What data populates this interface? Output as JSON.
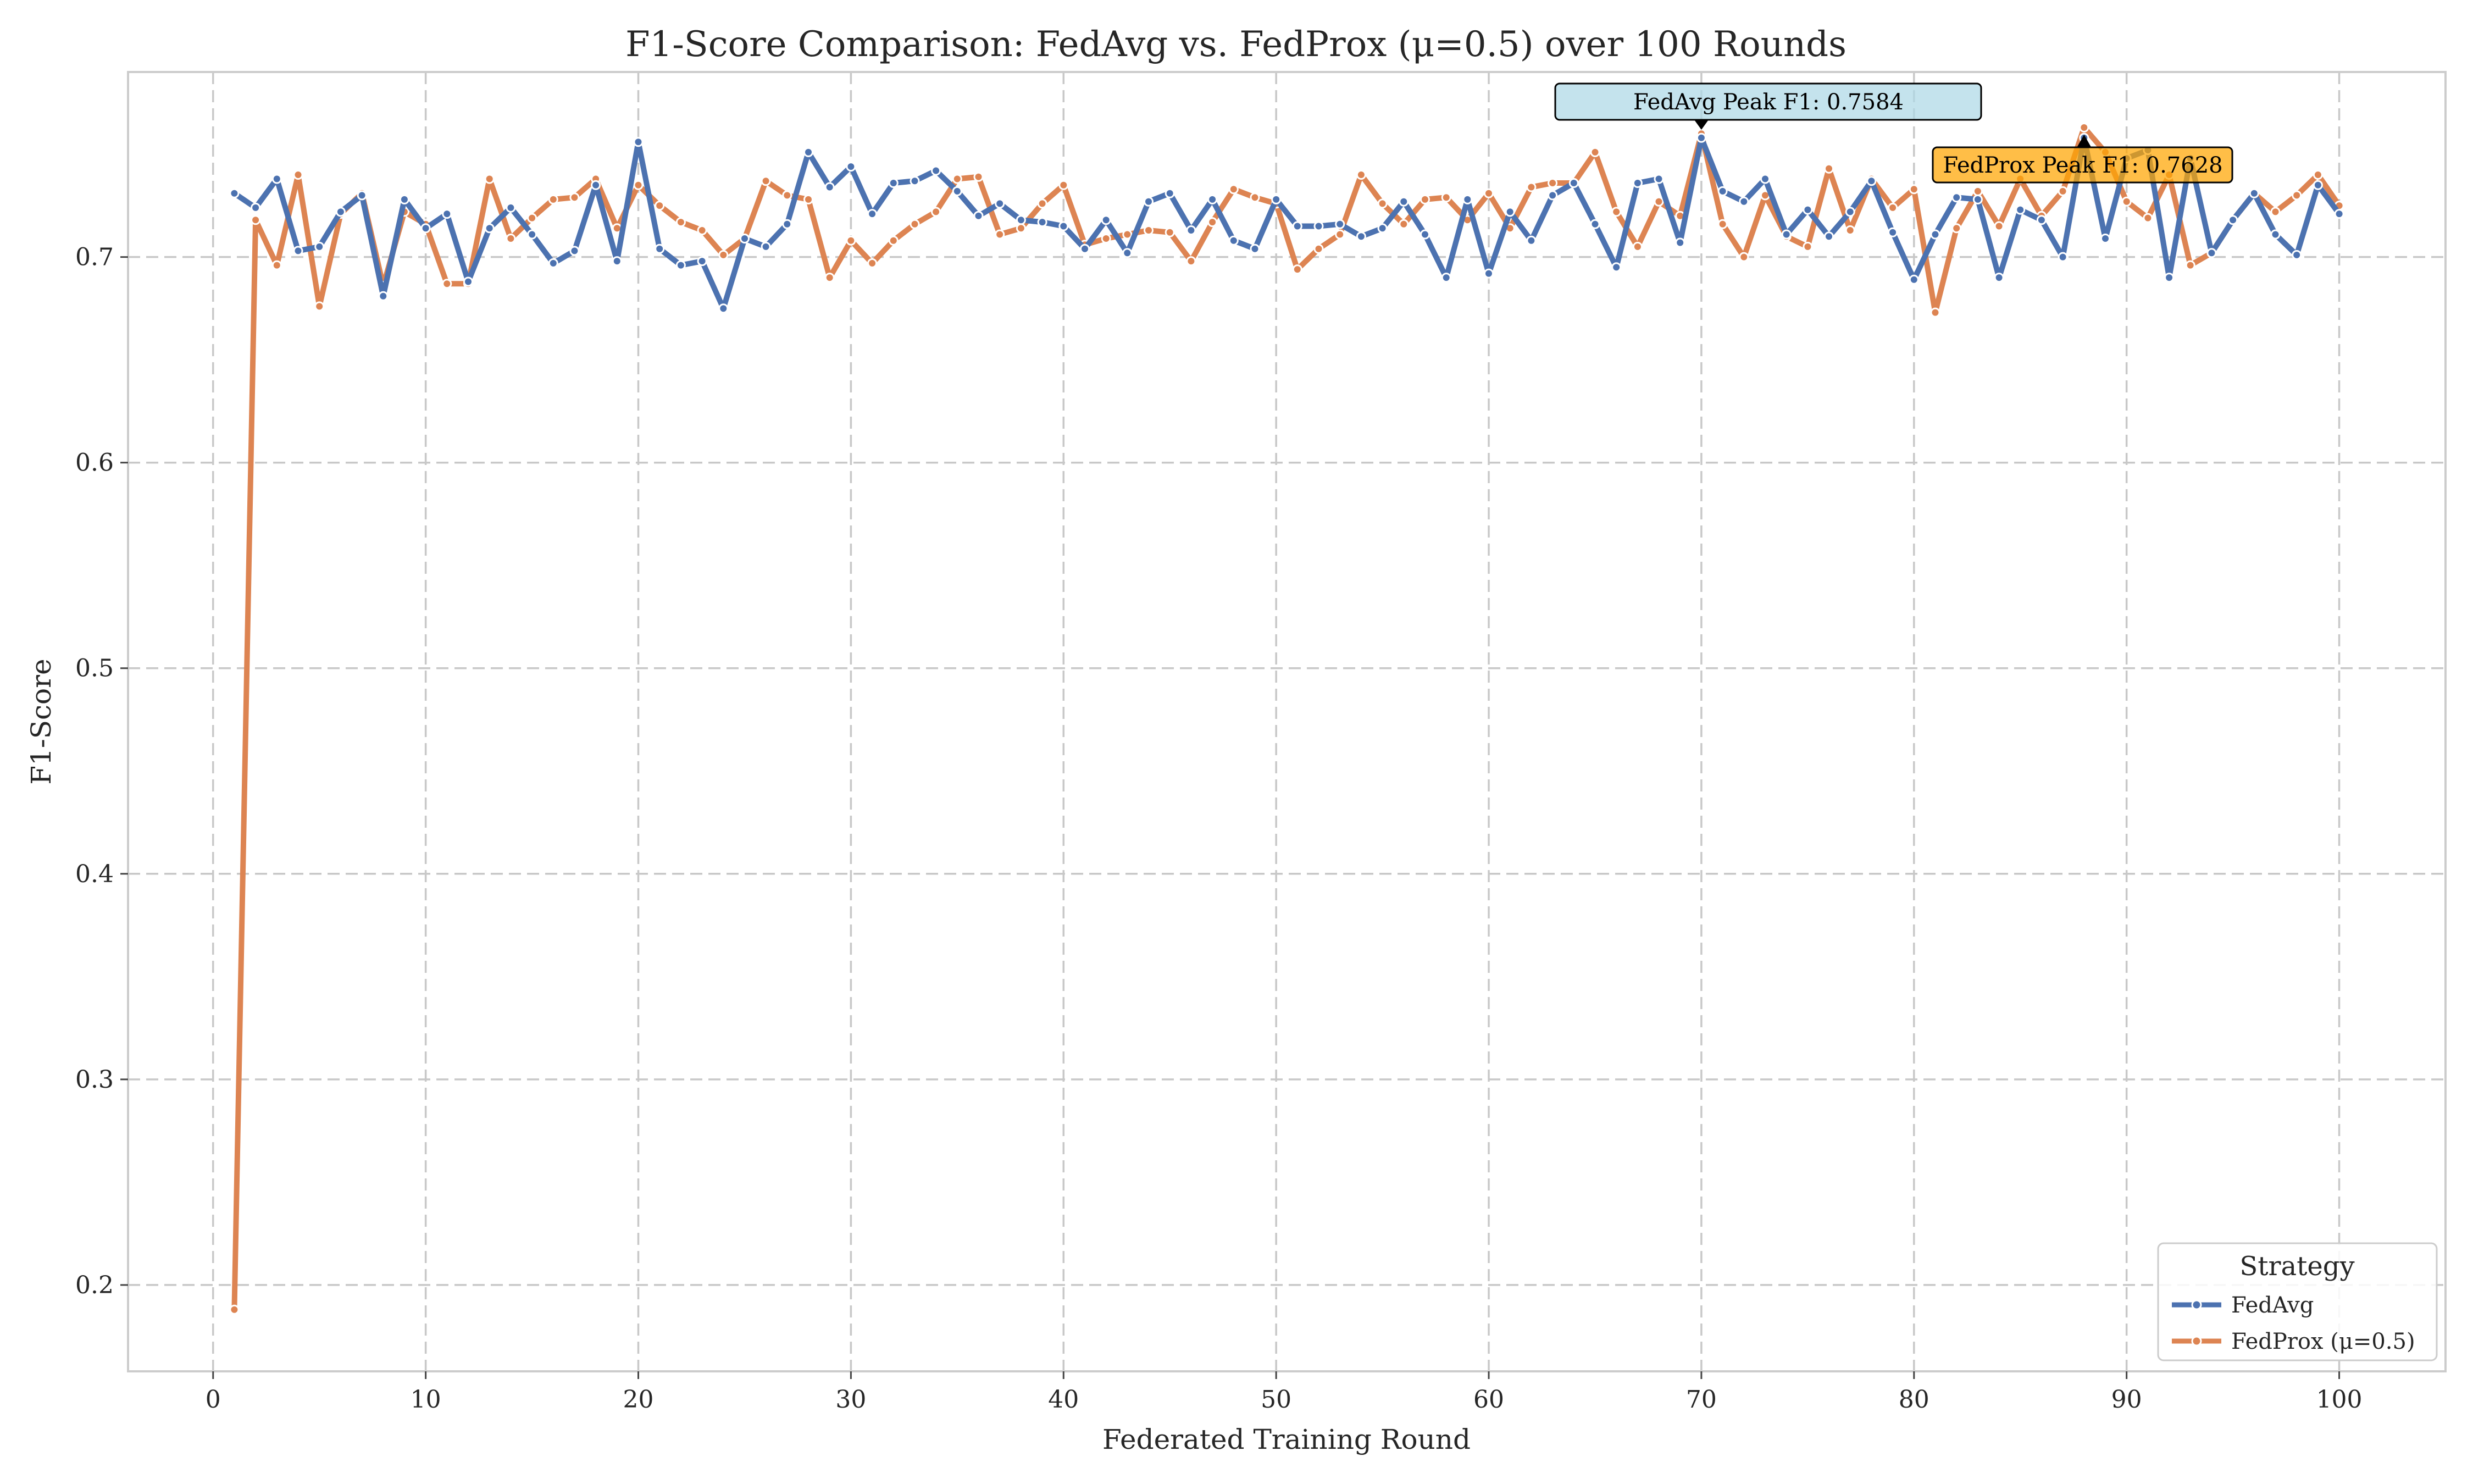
{
  "chart_data": {
    "type": "line",
    "title": "F1-Score Comparison: FedAvg vs. FedProx (μ=0.5) over 100 Rounds",
    "xlabel": "Federated Training Round",
    "ylabel": "F1-Score",
    "xlim": [
      -4,
      105
    ],
    "ylim": [
      0.158,
      0.79
    ],
    "xticks": [
      0,
      10,
      20,
      30,
      40,
      50,
      60,
      70,
      80,
      90,
      100
    ],
    "yticks": [
      0.2,
      0.3,
      0.4,
      0.5,
      0.6,
      0.7
    ],
    "ytick_labels": [
      "0.2",
      "0.3",
      "0.4",
      "0.5",
      "0.6",
      "0.7"
    ],
    "grid": true,
    "legend": {
      "title": "Strategy",
      "placement": "lower-right"
    },
    "series": [
      {
        "name": "FedAvg",
        "color": "#4c72b0",
        "x": [
          1,
          2,
          3,
          4,
          5,
          6,
          7,
          8,
          9,
          10,
          11,
          12,
          13,
          14,
          15,
          16,
          17,
          18,
          19,
          20,
          21,
          22,
          23,
          24,
          25,
          26,
          27,
          28,
          29,
          30,
          31,
          32,
          33,
          34,
          35,
          36,
          37,
          38,
          39,
          40,
          41,
          42,
          43,
          44,
          45,
          46,
          47,
          48,
          49,
          50,
          51,
          52,
          53,
          54,
          55,
          56,
          57,
          58,
          59,
          60,
          61,
          62,
          63,
          64,
          65,
          66,
          67,
          68,
          69,
          70,
          71,
          72,
          73,
          74,
          75,
          76,
          77,
          78,
          79,
          80,
          81,
          82,
          83,
          84,
          85,
          86,
          87,
          88,
          89,
          90,
          91,
          92,
          93,
          94,
          95,
          96,
          97,
          98,
          99,
          100
        ],
        "values": [
          0.731,
          0.724,
          0.738,
          0.703,
          0.705,
          0.722,
          0.73,
          0.681,
          0.728,
          0.714,
          0.721,
          0.688,
          0.714,
          0.724,
          0.711,
          0.697,
          0.703,
          0.735,
          0.698,
          0.756,
          0.704,
          0.696,
          0.698,
          0.675,
          0.709,
          0.705,
          0.716,
          0.751,
          0.734,
          0.744,
          0.721,
          0.736,
          0.737,
          0.742,
          0.732,
          0.72,
          0.726,
          0.718,
          0.717,
          0.715,
          0.704,
          0.718,
          0.702,
          0.727,
          0.731,
          0.713,
          0.728,
          0.708,
          0.704,
          0.728,
          0.715,
          0.715,
          0.716,
          0.71,
          0.714,
          0.727,
          0.711,
          0.69,
          0.728,
          0.692,
          0.722,
          0.708,
          0.73,
          0.736,
          0.716,
          0.695,
          0.736,
          0.738,
          0.707,
          0.758,
          0.732,
          0.727,
          0.738,
          0.711,
          0.723,
          0.71,
          0.722,
          0.737,
          0.712,
          0.689,
          0.711,
          0.729,
          0.728,
          0.69,
          0.723,
          0.718,
          0.7,
          0.758,
          0.709,
          0.748,
          0.752,
          0.69,
          0.748,
          0.702,
          0.718,
          0.731,
          0.711,
          0.701,
          0.735,
          0.721
        ]
      },
      {
        "name": "FedProx (μ=0.5)",
        "color": "#dd8452",
        "x": [
          1,
          2,
          3,
          4,
          5,
          6,
          7,
          8,
          9,
          10,
          11,
          12,
          13,
          14,
          15,
          16,
          17,
          18,
          19,
          20,
          21,
          22,
          23,
          24,
          25,
          26,
          27,
          28,
          29,
          30,
          31,
          32,
          33,
          34,
          35,
          36,
          37,
          38,
          39,
          40,
          41,
          42,
          43,
          44,
          45,
          46,
          47,
          48,
          49,
          50,
          51,
          52,
          53,
          54,
          55,
          56,
          57,
          58,
          59,
          60,
          61,
          62,
          63,
          64,
          65,
          66,
          67,
          68,
          69,
          70,
          71,
          72,
          73,
          74,
          75,
          76,
          77,
          78,
          79,
          80,
          81,
          82,
          83,
          84,
          85,
          86,
          87,
          88,
          89,
          90,
          91,
          92,
          93,
          94,
          95,
          96,
          97,
          98,
          99,
          100
        ],
        "values": [
          0.188,
          0.718,
          0.696,
          0.74,
          0.676,
          0.721,
          0.731,
          0.686,
          0.722,
          0.716,
          0.687,
          0.687,
          0.738,
          0.709,
          0.719,
          0.728,
          0.729,
          0.738,
          0.714,
          0.735,
          0.725,
          0.717,
          0.713,
          0.701,
          0.709,
          0.737,
          0.73,
          0.728,
          0.69,
          0.708,
          0.697,
          0.708,
          0.716,
          0.722,
          0.738,
          0.739,
          0.711,
          0.714,
          0.726,
          0.735,
          0.706,
          0.709,
          0.711,
          0.713,
          0.712,
          0.698,
          0.717,
          0.733,
          0.729,
          0.726,
          0.694,
          0.704,
          0.711,
          0.74,
          0.726,
          0.716,
          0.728,
          0.729,
          0.718,
          0.731,
          0.714,
          0.734,
          0.736,
          0.736,
          0.751,
          0.722,
          0.705,
          0.727,
          0.72,
          0.76,
          0.716,
          0.7,
          0.73,
          0.71,
          0.705,
          0.743,
          0.713,
          0.738,
          0.724,
          0.733,
          0.673,
          0.714,
          0.732,
          0.715,
          0.738,
          0.72,
          0.732,
          0.763,
          0.751,
          0.727,
          0.719,
          0.74,
          0.696,
          0.702,
          0.718,
          0.731,
          0.722,
          0.73,
          0.74,
          0.725
        ]
      }
    ],
    "annotations": [
      {
        "text": "FedAvg Peak F1: 0.7584",
        "x": 70,
        "y": 0.7584,
        "box_color": "#add8e6"
      },
      {
        "text": "FedProx Peak F1: 0.7628",
        "x": 88,
        "y": 0.7628,
        "box_color": "#ffa500"
      }
    ]
  }
}
